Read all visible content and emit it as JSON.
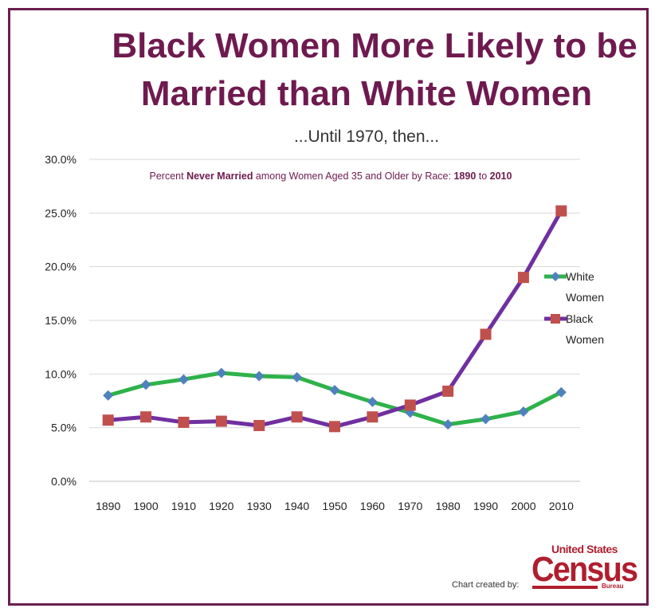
{
  "header": {
    "title_line1": "Black Women More Likely to be",
    "title_line2": "Married than White Women",
    "subtitle": "...Until 1970, then..."
  },
  "chart_data": {
    "type": "line",
    "title_parts": [
      "Percent ",
      "Never Married",
      " among Women Aged 35 and Older by Race: ",
      "1890",
      " to ",
      "2010"
    ],
    "categories": [
      "1890",
      "1900",
      "1910",
      "1920",
      "1930",
      "1940",
      "1950",
      "1960",
      "1970",
      "1980",
      "1990",
      "2000",
      "2010"
    ],
    "y_ticks": [
      "0.0%",
      "5.0%",
      "10.0%",
      "15.0%",
      "20.0%",
      "25.0%",
      "30.0%"
    ],
    "ylim": [
      0,
      30
    ],
    "grid": true,
    "legend_position": "right",
    "series": [
      {
        "name_line1": "White",
        "name_line2": "Women",
        "color": "#2eb24a",
        "marker_color": "#4f81bd",
        "marker": "diamond",
        "values": [
          8.0,
          9.0,
          9.5,
          10.1,
          9.8,
          9.7,
          8.5,
          7.4,
          6.4,
          5.3,
          5.8,
          6.5,
          8.3
        ]
      },
      {
        "name_line1": "Black",
        "name_line2": "Women",
        "color": "#7030a0",
        "marker_color": "#c0504d",
        "marker": "square",
        "values": [
          5.7,
          6.0,
          5.5,
          5.6,
          5.2,
          6.0,
          5.1,
          6.0,
          7.1,
          8.4,
          13.7,
          19.0,
          25.2
        ]
      }
    ]
  },
  "footer": {
    "credit": "Chart created by:",
    "logo_top": "United States",
    "logo_main": "Census",
    "logo_sub": "Bureau"
  }
}
